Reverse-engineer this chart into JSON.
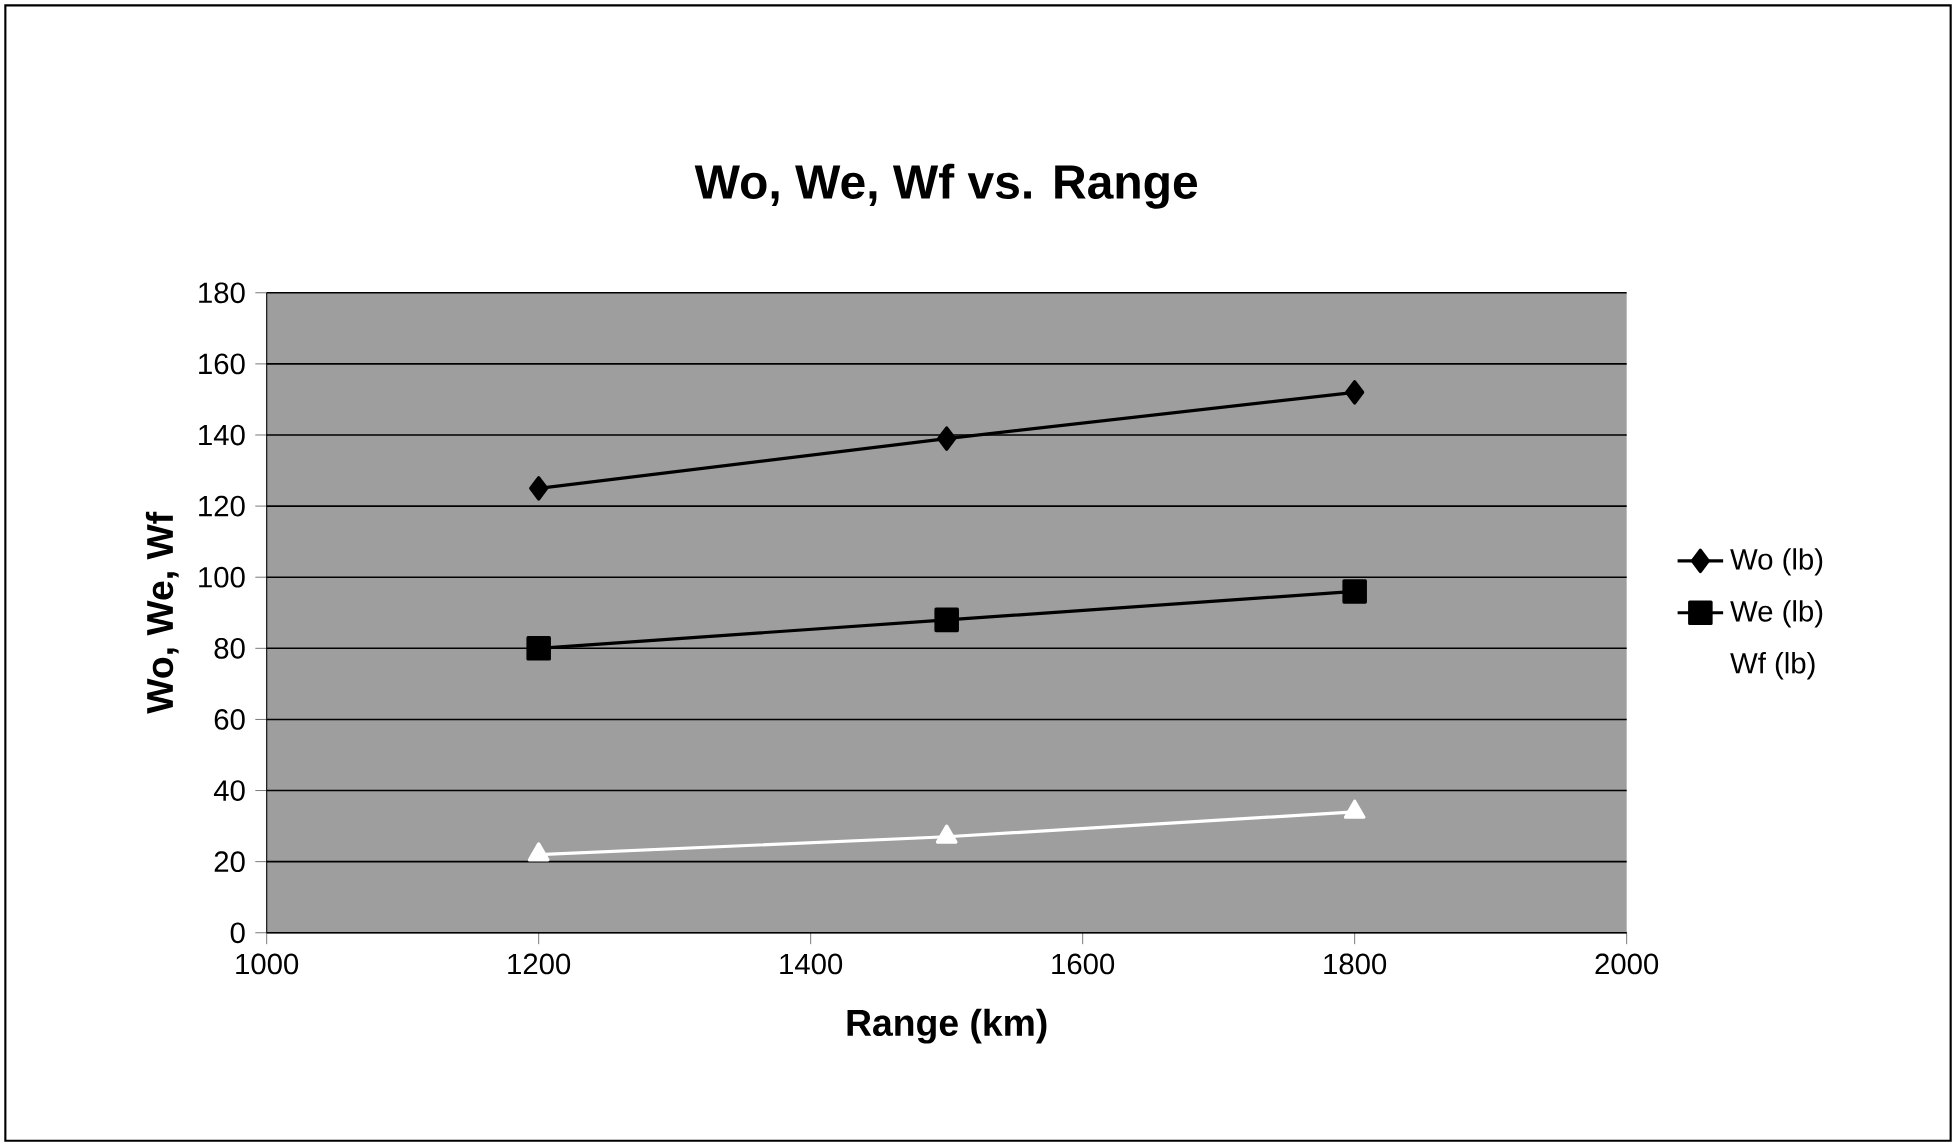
{
  "chart_data": {
    "type": "line",
    "title": "Wo, We, Wf vs. Range",
    "xlabel": "Range (km)",
    "ylabel": "Wo, We, Wf",
    "x": [
      1200,
      1500,
      1800
    ],
    "series": [
      {
        "name": "Wo (lb)",
        "color": "#000000",
        "marker": "diamond",
        "values": [
          125,
          139,
          152
        ]
      },
      {
        "name": "We (lb)",
        "color": "#000000",
        "marker": "square",
        "values": [
          80,
          88,
          96
        ]
      },
      {
        "name": "Wf (lb)",
        "color": "#ffffff",
        "marker": "triangle",
        "values": [
          22,
          27,
          34
        ]
      }
    ],
    "xlim": [
      1000,
      2000
    ],
    "xticks": [
      1000,
      1200,
      1400,
      1600,
      1800,
      2000
    ],
    "ylim": [
      0,
      180
    ],
    "yticks": [
      0,
      20,
      40,
      60,
      80,
      100,
      120,
      140,
      160,
      180
    ],
    "grid": "y",
    "legend": "right",
    "line_style": "solid"
  }
}
